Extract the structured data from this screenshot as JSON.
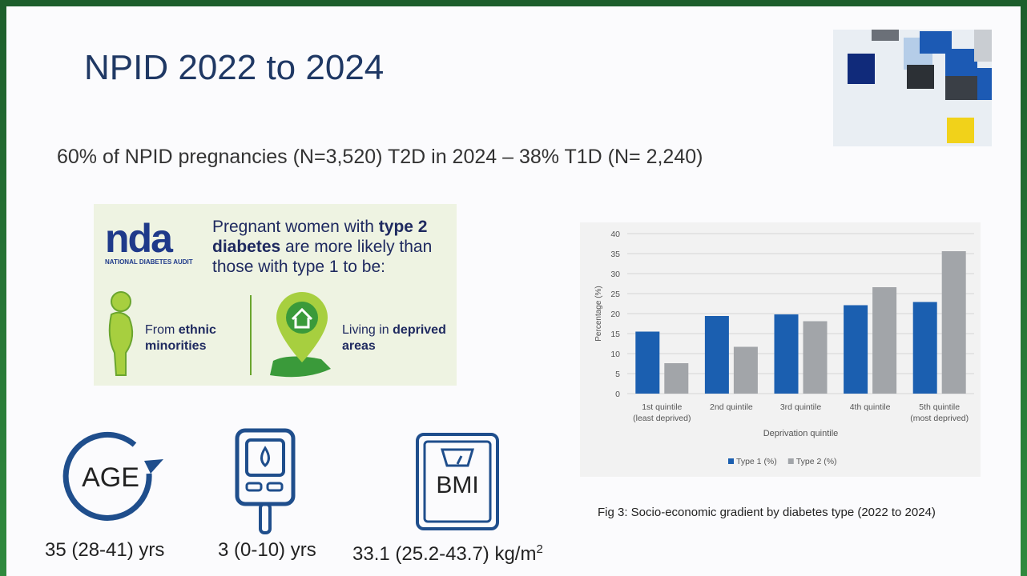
{
  "slide": {
    "title": "NPID 2022 to 2024",
    "subtitle": "60% of NPID pregnancies (N=3,520) T2D in 2024 – 38% T1D (N= 2,240)",
    "infographic": {
      "logo": "nda",
      "logo_caption": "NATIONAL DIABETES AUDIT",
      "headline": [
        "Pregnant women with ",
        "type 2 diabetes",
        " are more likely than those with type 1 to be:"
      ],
      "item_1": [
        "From ",
        "ethnic minorities"
      ],
      "item_2": [
        "Living in ",
        "deprived areas"
      ]
    },
    "stats": {
      "age_icon": "AGE",
      "age": "35 (28-41) yrs",
      "duration": "3 (0-10) yrs",
      "bmi_icon": "BMI",
      "bmi": "33.1 (25.2-43.7) kg/m",
      "bmi_sup": "2"
    },
    "caption": "Fig 3: Socio-economic gradient by diabetes type (2022 to 2024)"
  },
  "chart_data": {
    "type": "bar",
    "x_label": "Deprivation quintile",
    "y_label": "Percentage (%)",
    "categories": [
      "1st quintile\n(least deprived)",
      "2nd quintile",
      "3rd quintile",
      "4th quintile",
      "5th quintile\n(most deprived)"
    ],
    "series": [
      {
        "name": "Type 1 (%)",
        "color": "#1b5fb0",
        "values": [
          15.5,
          19.4,
          19.8,
          22.1,
          22.9
        ]
      },
      {
        "name": "Type 2 (%)",
        "color": "#a2a5a9",
        "values": [
          7.6,
          11.7,
          18.1,
          26.6,
          35.6
        ]
      }
    ],
    "ylim": [
      0,
      40
    ],
    "yticks": [
      0,
      5,
      10,
      15,
      20,
      25,
      30,
      35,
      40
    ],
    "grid": true,
    "legend": "bottom"
  }
}
